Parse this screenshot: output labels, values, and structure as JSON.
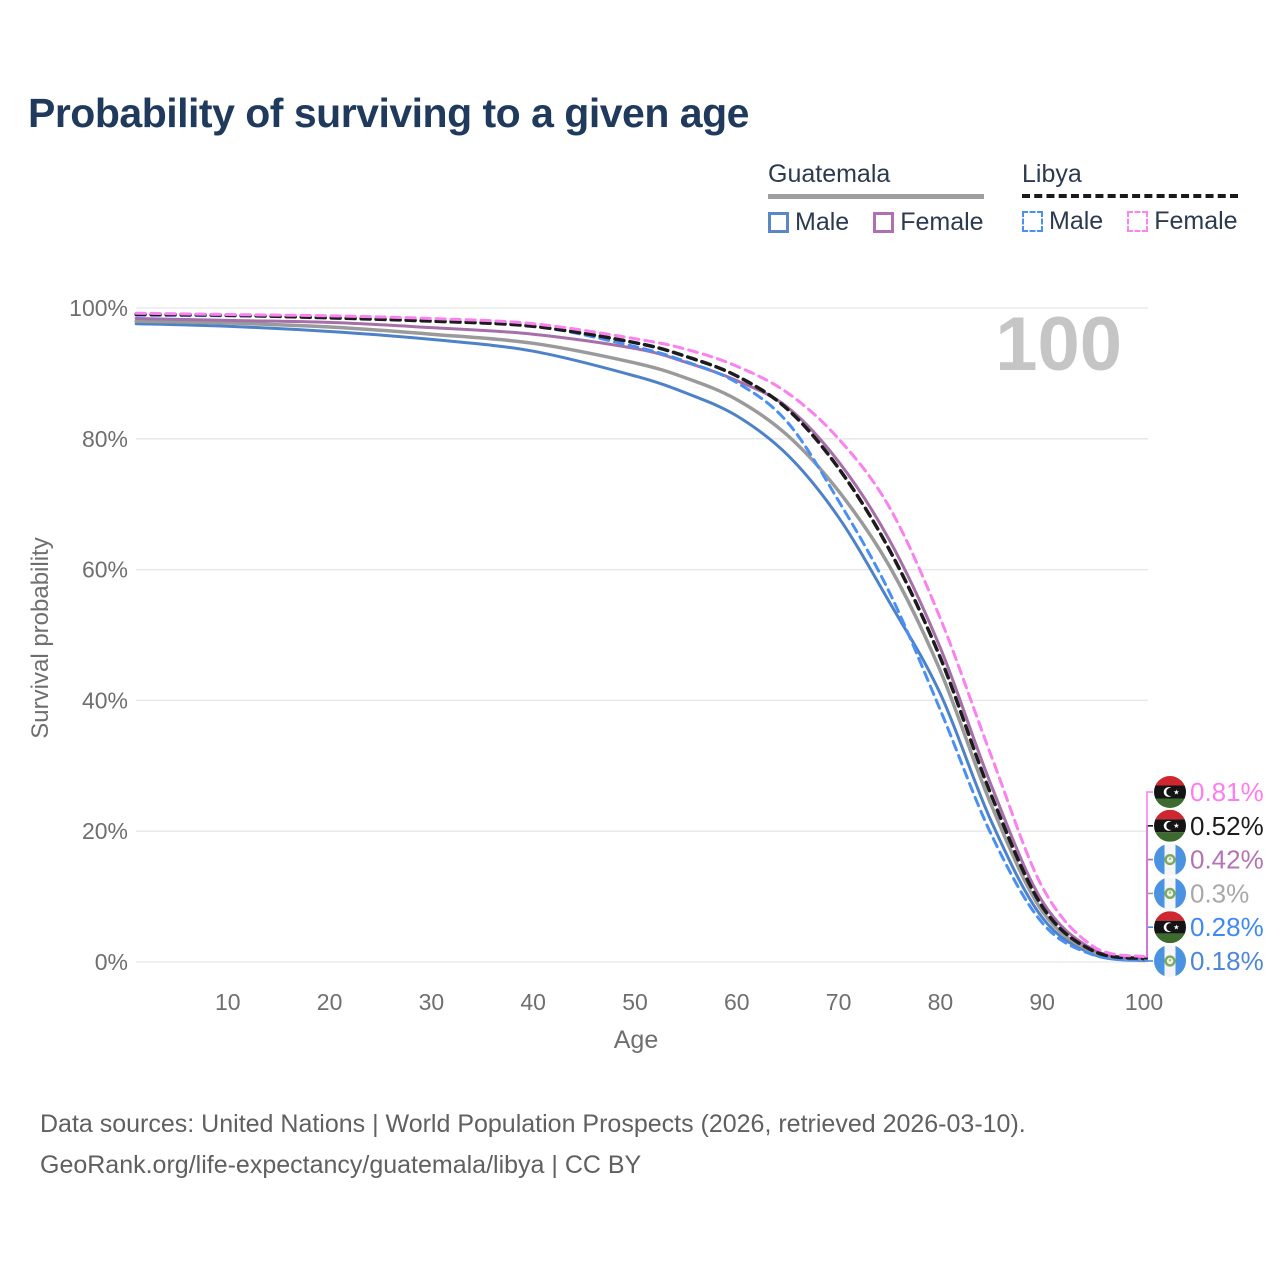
{
  "title": "Probability of surviving to a given age",
  "watermark_age": "100",
  "legend": {
    "groups": [
      {
        "country": "Guatemala",
        "underline_color": "#9e9e9e",
        "underline_style": "solid",
        "items": [
          {
            "label": "Male",
            "color": "#5b87c5",
            "dashed": false
          },
          {
            "label": "Female",
            "color": "#b06fb3",
            "dashed": false
          }
        ]
      },
      {
        "country": "Libya",
        "underline_color": "#1a1a1a",
        "underline_style": "dashed",
        "items": [
          {
            "label": "Male",
            "color": "#4a90f4",
            "dashed": true
          },
          {
            "label": "Female",
            "color": "#fb85f0",
            "dashed": true
          }
        ]
      }
    ]
  },
  "chart_data": {
    "type": "line",
    "title": "Probability of surviving to a given age",
    "xlabel": "Age",
    "ylabel": "Survival probability",
    "xlim": [
      1,
      100
    ],
    "ylim": [
      0,
      100
    ],
    "grid": "horizontal-only",
    "legend_position": "top-right",
    "x_ticks": [
      10,
      20,
      30,
      40,
      50,
      60,
      70,
      80,
      90,
      100
    ],
    "y_ticks": [
      {
        "value": 0,
        "label": "0%"
      },
      {
        "value": 20,
        "label": "20%"
      },
      {
        "value": 40,
        "label": "40%"
      },
      {
        "value": 60,
        "label": "60%"
      },
      {
        "value": 80,
        "label": "80%"
      },
      {
        "value": 100,
        "label": "100%"
      }
    ],
    "ages": [
      1,
      10,
      20,
      30,
      40,
      50,
      55,
      60,
      65,
      70,
      75,
      80,
      85,
      90,
      95,
      100
    ],
    "series": [
      {
        "name": "Guatemala Male",
        "country": "Guatemala",
        "sex": "Male",
        "color": "#4e82c8",
        "dash": null,
        "width": 3,
        "values": [
          97.6,
          97.2,
          96.4,
          95.2,
          93.4,
          89.6,
          87.0,
          83.5,
          77.5,
          68.0,
          55.0,
          41.0,
          21.5,
          6.8,
          1.2,
          0.18
        ],
        "end_label": "0.18%",
        "end_label_color": "#4e86d8",
        "flag": "guatemala",
        "label_slot": 5
      },
      {
        "name": "Guatemala",
        "country": "Guatemala",
        "sex": "Both",
        "color": "#9a9a9a",
        "dash": null,
        "width": 3.5,
        "values": [
          98.0,
          97.7,
          97.1,
          96.0,
          94.6,
          91.6,
          89.3,
          86.0,
          80.5,
          72.0,
          60.5,
          44.5,
          24.0,
          7.8,
          1.5,
          0.3
        ],
        "end_label": "0.3%",
        "end_label_color": "#a8a8a8",
        "flag": "guatemala",
        "label_slot": 3
      },
      {
        "name": "Guatemala Female",
        "country": "Guatemala",
        "sex": "Female",
        "color": "#a76fa9",
        "dash": null,
        "width": 3,
        "values": [
          98.4,
          98.1,
          97.8,
          97.0,
          96.0,
          93.8,
          91.7,
          88.9,
          84.8,
          76.5,
          64.5,
          48.0,
          27.0,
          9.3,
          1.9,
          0.42
        ],
        "end_label": "0.42%",
        "end_label_color": "#b473b4",
        "flag": "guatemala",
        "label_slot": 2
      },
      {
        "name": "Libya Male",
        "country": "Libya",
        "sex": "Male",
        "color": "#4a90f4",
        "dash": "9 6",
        "width": 3,
        "values": [
          98.9,
          98.8,
          98.6,
          98.1,
          97.3,
          94.1,
          91.8,
          88.6,
          82.5,
          70.5,
          56.5,
          38.5,
          19.5,
          6.0,
          1.1,
          0.28
        ],
        "end_label": "0.28%",
        "end_label_color": "#3f8af2",
        "flag": "libya",
        "label_slot": 4
      },
      {
        "name": "Libya",
        "country": "Libya",
        "sex": "Both",
        "color": "#1c1c1c",
        "dash": "9 6",
        "width": 3.5,
        "values": [
          99.05,
          98.9,
          98.5,
          98.0,
          97.2,
          94.7,
          92.6,
          89.6,
          84.5,
          75.5,
          63.0,
          46.5,
          25.5,
          8.5,
          1.7,
          0.52
        ],
        "end_label": "0.52%",
        "end_label_color": "#1c1c1c",
        "flag": "libya",
        "label_slot": 1
      },
      {
        "name": "Libya Female",
        "country": "Libya",
        "sex": "Female",
        "color": "#fb80f0",
        "dash": "9 6",
        "width": 3,
        "values": [
          99.2,
          99.0,
          98.8,
          98.4,
          97.6,
          95.3,
          93.7,
          91.1,
          87.0,
          80.0,
          69.5,
          52.5,
          31.5,
          11.5,
          2.4,
          0.81
        ],
        "end_label": "0.81%",
        "end_label_color": "#ff7bee",
        "flag": "libya",
        "label_slot": 0
      }
    ]
  },
  "footer": {
    "line1": "Data sources: United Nations | World Population Prospects (2026, retrieved 2026-03-10).",
    "line2": "GeoRank.org/life-expectancy/guatemala/libya | CC BY"
  },
  "colors": {
    "title": "#1f3a5c",
    "axis_text": "#6f6f6f",
    "gridline": "#e6e6e6",
    "watermark": "#c5c5c5",
    "footer_text": "#606060"
  }
}
